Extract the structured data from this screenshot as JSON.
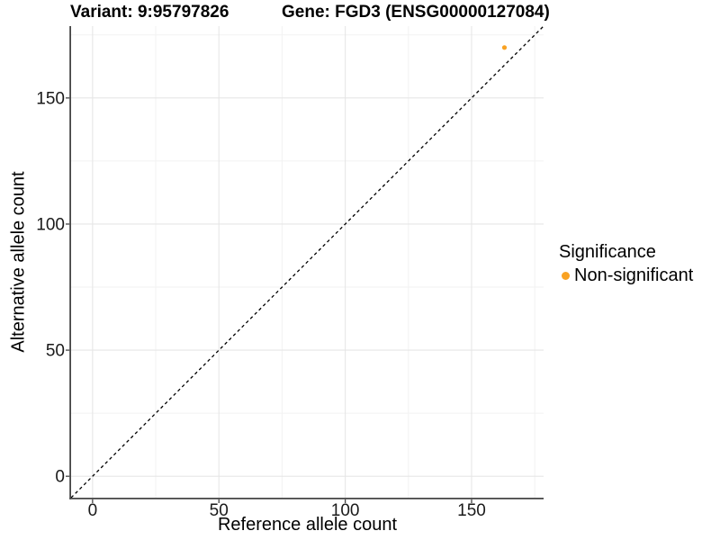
{
  "header": {
    "variant_title": "Variant: 9:95797826",
    "gene_title": "Gene: FGD3 (ENSG00000127084)"
  },
  "axes": {
    "x_label": "Reference allele count",
    "y_label": "Alternative allele count"
  },
  "legend": {
    "title": "Significance",
    "items": [
      {
        "label": "Non-significant",
        "color": "#F9A223"
      }
    ]
  },
  "colors": {
    "point": "#F9A223",
    "grid_major": "#E6E6E6",
    "grid_minor": "#F2F2F2",
    "axis_line": "#454545",
    "tick_text": "#1A1A1A",
    "reference_line": "#000000",
    "background": "#FFFFFF"
  },
  "chart_data": {
    "type": "scatter",
    "title": "Variant: 9:95797826 / Gene: FGD3 (ENSG00000127084)",
    "xlabel": "Reference allele count",
    "ylabel": "Alternative allele count",
    "xlim": [
      -8.5,
      178.5
    ],
    "ylim": [
      -8.5,
      178.5
    ],
    "x_ticks": [
      0,
      50,
      100,
      150
    ],
    "y_ticks": [
      0,
      50,
      100,
      150
    ],
    "x_minor_ticks": [
      25,
      75,
      125,
      175
    ],
    "y_minor_ticks": [
      25,
      75,
      125,
      175
    ],
    "grid": "on",
    "legend_position": "right",
    "series": [
      {
        "name": "Non-significant",
        "color": "#F9A223",
        "points": [
          {
            "x": 163,
            "y": 170
          }
        ]
      }
    ],
    "reference_line": {
      "slope": 1,
      "intercept": 0,
      "style": "dashed"
    }
  }
}
